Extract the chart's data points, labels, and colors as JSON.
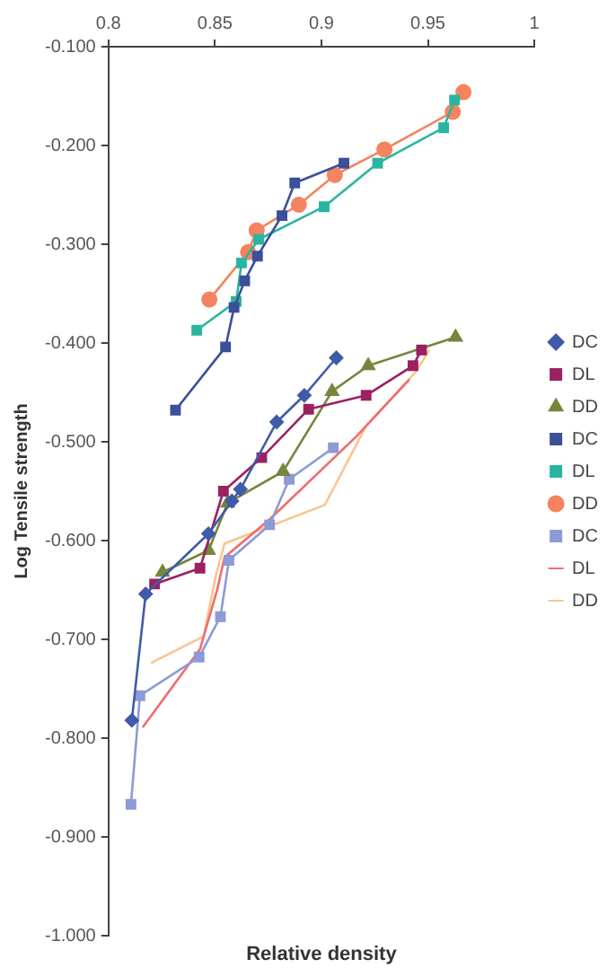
{
  "chart_data": {
    "type": "line",
    "xlabel": "Relative density",
    "ylabel": "Log Tensile strength",
    "xlim": [
      0.8,
      1
    ],
    "xticks": [
      0.8,
      0.85,
      0.9,
      0.95,
      1
    ],
    "ylim": [
      -1,
      -0.1
    ],
    "yticks": [
      {
        "value": -1,
        "label": "-1.000"
      },
      {
        "value": -0.9,
        "label": "-0.900"
      },
      {
        "value": -0.8,
        "label": "-0.800"
      },
      {
        "value": -0.7,
        "label": "-0.700"
      },
      {
        "value": -0.6,
        "label": "-0.600"
      },
      {
        "value": -0.5,
        "label": "-0.500"
      },
      {
        "value": -0.4,
        "label": "-0.400"
      },
      {
        "value": -0.3,
        "label": "-0.300"
      },
      {
        "value": -0.2,
        "label": "-0.200"
      },
      {
        "value": -0.1,
        "label": "-0.100"
      }
    ],
    "grid": false,
    "legend": "right",
    "line_style": "solid",
    "series": [
      {
        "name": "DC",
        "color": "#3f5ba9",
        "marker": "diamond",
        "x": [
          0.811,
          0.8175,
          0.847,
          0.858,
          0.862,
          0.879,
          0.892,
          0.907
        ],
        "values": [
          -0.782,
          -0.654,
          -0.593,
          -0.56,
          -0.548,
          -0.48,
          -0.453,
          -0.415
        ]
      },
      {
        "name": "DL",
        "color": "#9b2160",
        "marker": "square",
        "x": [
          0.8217,
          0.843,
          0.854,
          0.872,
          0.894,
          0.921,
          0.943,
          0.947
        ],
        "values": [
          -0.644,
          -0.628,
          -0.55,
          -0.516,
          -0.467,
          -0.453,
          -0.423,
          -0.407
        ]
      },
      {
        "name": "DD",
        "color": "#76863c",
        "marker": "triangle",
        "x": [
          0.8254,
          0.847,
          0.856,
          0.882,
          0.905,
          0.922,
          0.963
        ],
        "values": [
          -0.632,
          -0.61,
          -0.562,
          -0.53,
          -0.449,
          -0.423,
          -0.394
        ]
      },
      {
        "name": "DC",
        "color": "#3b4f9a",
        "marker": "square",
        "x": [
          0.8315,
          0.855,
          0.859,
          0.864,
          0.87,
          0.8815,
          0.8875,
          0.9106
        ],
        "values": [
          -0.468,
          -0.404,
          -0.364,
          -0.337,
          -0.312,
          -0.271,
          -0.238,
          -0.218
        ]
      },
      {
        "name": "DL",
        "color": "#2ab5a0",
        "marker": "square",
        "x": [
          0.8415,
          0.86,
          0.8625,
          0.8706,
          0.9013,
          0.9264,
          0.9574,
          0.9625
        ],
        "values": [
          -0.387,
          -0.358,
          -0.319,
          -0.295,
          -0.262,
          -0.218,
          -0.182,
          -0.154
        ]
      },
      {
        "name": "DD",
        "color": "#f4845f",
        "marker": "circle",
        "x": [
          0.8474,
          0.8656,
          0.8696,
          0.8894,
          0.9063,
          0.9296,
          0.9617,
          0.9667
        ],
        "values": [
          -0.356,
          -0.308,
          -0.286,
          -0.26,
          -0.23,
          -0.204,
          -0.166,
          -0.146
        ]
      },
      {
        "name": "DC",
        "color": "#8c9bd6",
        "marker": "square",
        "x": [
          0.8106,
          0.8148,
          0.8426,
          0.8526,
          0.8566,
          0.8757,
          0.8849,
          0.9056
        ],
        "values": [
          -0.867,
          -0.757,
          -0.718,
          -0.677,
          -0.62,
          -0.584,
          -0.538,
          -0.506
        ]
      },
      {
        "name": "DL",
        "color": "#f06c6c",
        "marker": "none",
        "x": [
          0.8161,
          0.843,
          0.8513,
          0.8545,
          0.876,
          0.9167,
          0.9413
        ],
        "values": [
          -0.789,
          -0.71,
          -0.648,
          -0.617,
          -0.578,
          -0.494,
          -0.437
        ]
      },
      {
        "name": "DD",
        "color": "#fbc48f",
        "marker": "none",
        "x": [
          0.82,
          0.8447,
          0.8505,
          0.8545,
          0.9016,
          0.921,
          0.9444,
          0.9506
        ],
        "values": [
          -0.724,
          -0.697,
          -0.635,
          -0.603,
          -0.564,
          -0.484,
          -0.429,
          -0.407
        ]
      }
    ]
  }
}
